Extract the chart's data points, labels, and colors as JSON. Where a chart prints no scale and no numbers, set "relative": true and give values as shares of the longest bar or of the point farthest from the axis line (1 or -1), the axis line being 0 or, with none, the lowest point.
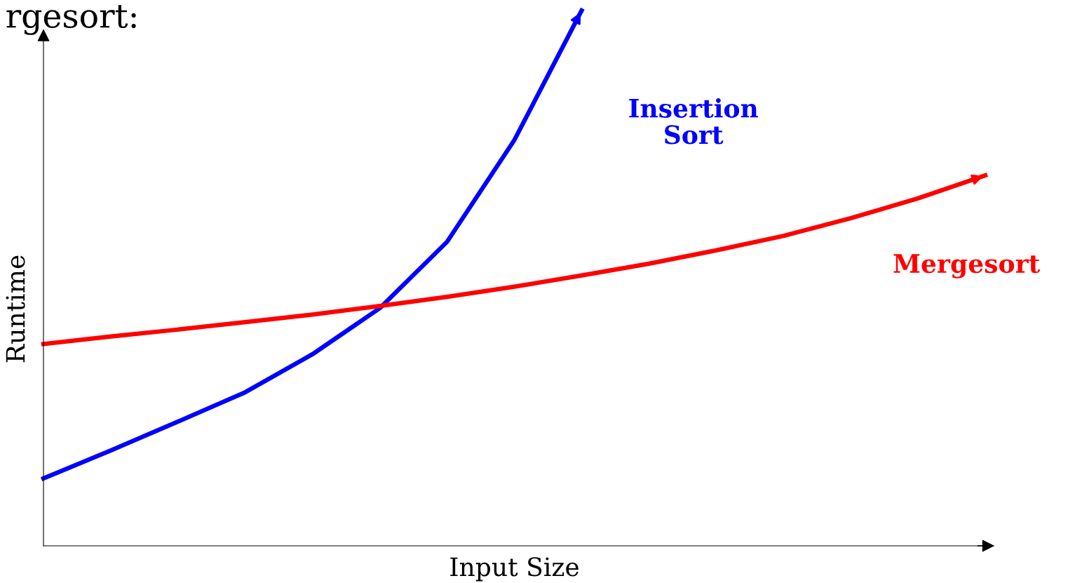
{
  "chart_data": {
    "type": "line",
    "relative": true,
    "title": "rgesort:",
    "xlabel": "Input Size",
    "ylabel": "Runtime",
    "categories": [
      null,
      null,
      null,
      null,
      null,
      null,
      null,
      null,
      null,
      null,
      null,
      null,
      null,
      null,
      null
    ],
    "series": [
      {
        "name": "Insertion\nSort",
        "color": "#0000ff",
        "values": [
          0.126,
          0.178,
          0.232,
          0.287,
          0.358,
          0.444,
          0.568,
          0.758,
          1.0,
          null,
          null,
          null,
          null,
          null,
          null
        ]
      },
      {
        "name": "Mergesort",
        "color": "#ff0000",
        "values": [
          0.377,
          0.391,
          0.404,
          0.418,
          0.432,
          0.448,
          0.465,
          0.484,
          0.505,
          0.527,
          0.552,
          0.579,
          0.612,
          0.649,
          0.692
        ]
      }
    ],
    "marker": "none",
    "line_style": "solid",
    "grid": false,
    "legend": false
  }
}
